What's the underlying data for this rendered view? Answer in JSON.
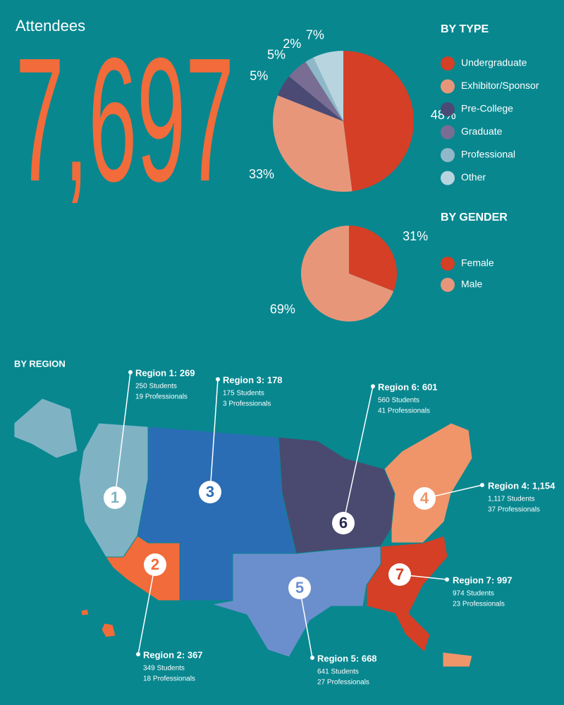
{
  "attendees": {
    "label": "Attendees",
    "total": "7,697"
  },
  "chart_data": [
    {
      "type": "pie",
      "title": "BY TYPE",
      "categories": [
        "Undergraduate",
        "Exhibitor/Sponsor",
        "Pre-College",
        "Graduate",
        "Professional",
        "Other"
      ],
      "values": [
        48,
        33,
        5,
        5,
        2,
        7
      ],
      "value_labels": [
        "48%",
        "33%",
        "5%",
        "5%",
        "2%",
        "7%"
      ],
      "colors": [
        "#d43f26",
        "#e8967a",
        "#4a4a74",
        "#7a6d94",
        "#8fb8c8",
        "#b8d4de"
      ]
    },
    {
      "type": "pie",
      "title": "BY GENDER",
      "categories": [
        "Female",
        "Male"
      ],
      "values": [
        31,
        69
      ],
      "value_labels": [
        "31%",
        "69%"
      ],
      "colors": [
        "#d43f26",
        "#e8967a"
      ]
    }
  ],
  "by_region": {
    "title": "BY REGION",
    "regions": [
      {
        "number": "1",
        "title": "Region 1: 269",
        "students": "250 Students",
        "professionals": "19 Professionals"
      },
      {
        "number": "2",
        "title": "Region 2: 367",
        "students": "349 Students",
        "professionals": "18 Professionals"
      },
      {
        "number": "3",
        "title": "Region 3: 178",
        "students": "175 Students",
        "professionals": "3 Professionals"
      },
      {
        "number": "4",
        "title": "Region 4: 1,154",
        "students": "1,117 Students",
        "professionals": "37 Professionals"
      },
      {
        "number": "5",
        "title": "Region 5: 668",
        "students": "641 Students",
        "professionals": "27 Professionals"
      },
      {
        "number": "6",
        "title": "Region 6: 601",
        "students": "560 Students",
        "professionals": "41 Professionals"
      },
      {
        "number": "7",
        "title": "Region 7: 997",
        "students": "974 Students",
        "professionals": "23 Professionals"
      }
    ]
  }
}
